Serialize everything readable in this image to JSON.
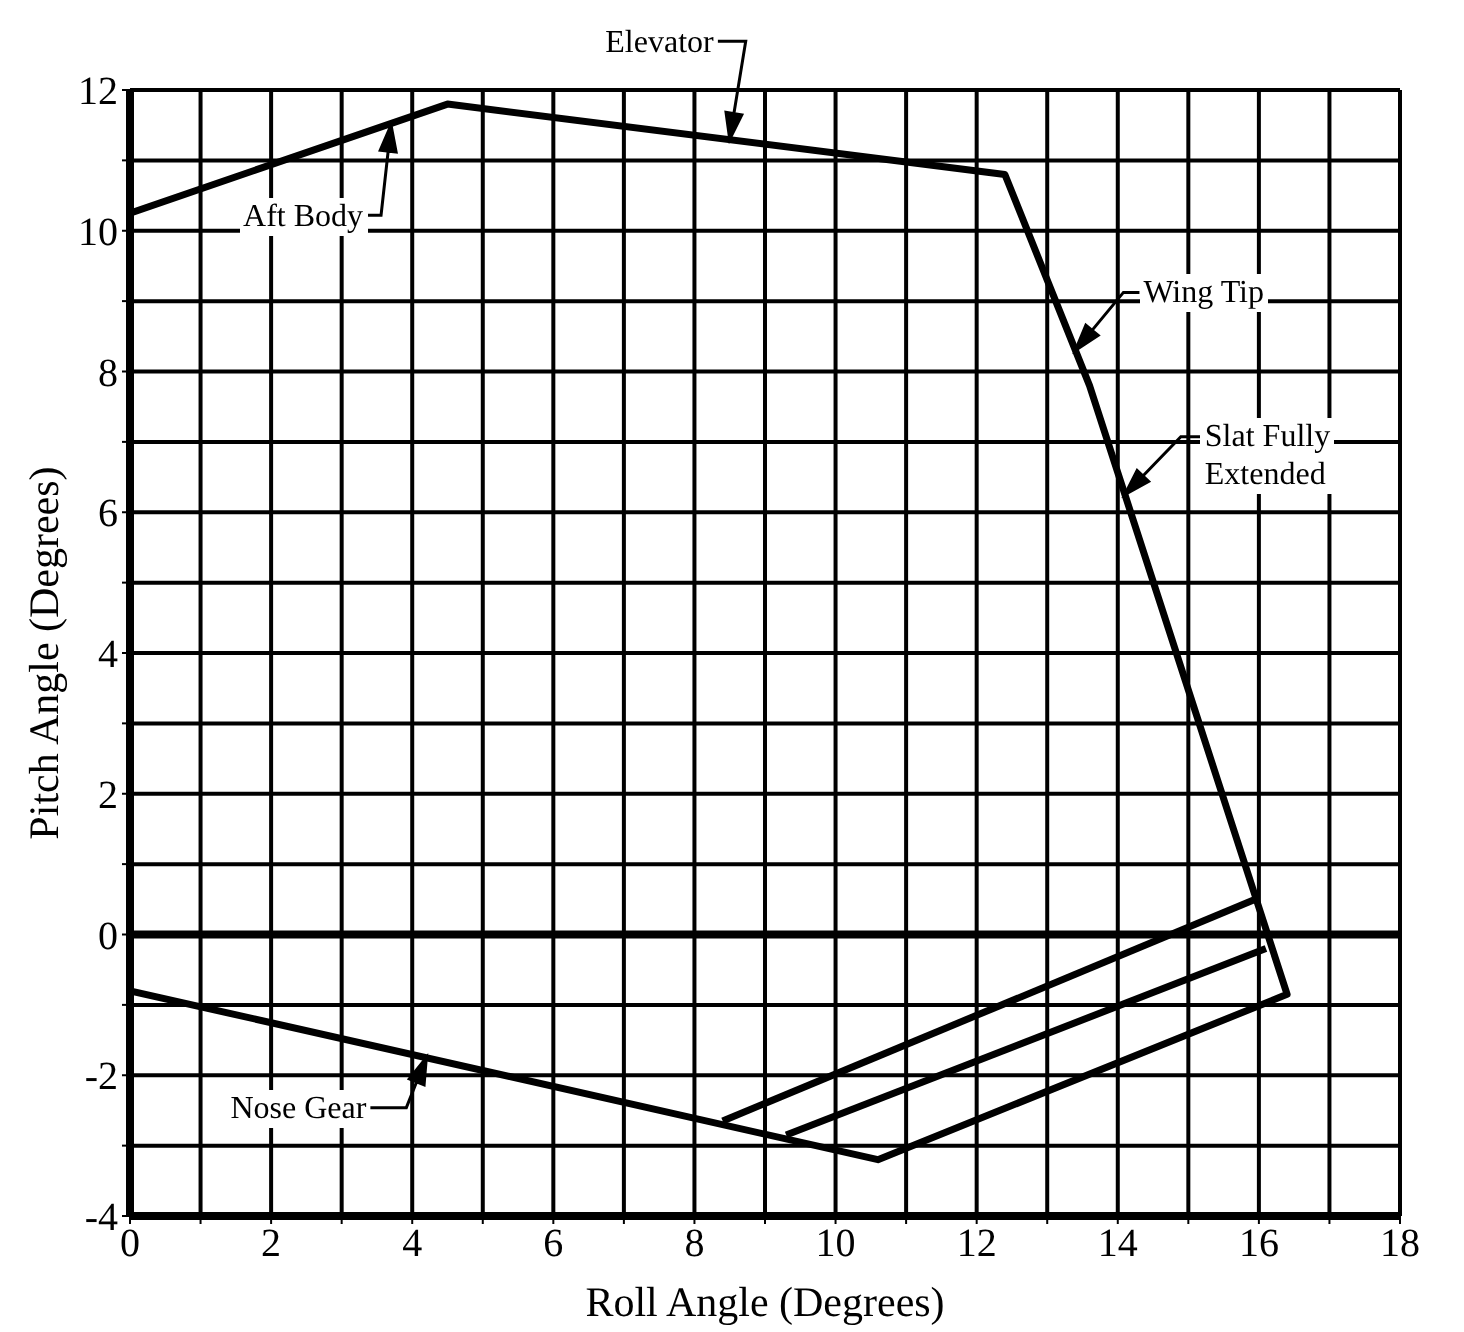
{
  "chart_data": {
    "type": "line",
    "xlabel": "Roll Angle (Degrees)",
    "ylabel": "Pitch Angle (Degrees)",
    "xlim": [
      0,
      18
    ],
    "ylim": [
      -4,
      12
    ],
    "xticks": [
      0,
      {
        "value": 1,
        "label": null
      },
      2,
      {
        "value": 3,
        "label": null
      },
      4,
      {
        "value": 5,
        "label": null
      },
      6,
      {
        "value": 7,
        "label": null
      },
      8,
      {
        "value": 9,
        "label": null
      },
      10,
      {
        "value": 11,
        "label": null
      },
      12,
      {
        "value": 13,
        "label": null
      },
      14,
      {
        "value": 15,
        "label": null
      },
      16,
      {
        "value": 17,
        "label": null
      },
      18
    ],
    "yticks": [
      -4,
      {
        "value": -3,
        "label": null
      },
      -2,
      {
        "value": -1,
        "label": null
      },
      0,
      {
        "value": 1,
        "label": null
      },
      2,
      {
        "value": 3,
        "label": null
      },
      4,
      {
        "value": 5,
        "label": null
      },
      6,
      {
        "value": 7,
        "label": null
      },
      8,
      {
        "value": 9,
        "label": null
      },
      10,
      {
        "value": 11,
        "label": null
      },
      12
    ],
    "grid": true,
    "marker": "none",
    "line_style": "solid",
    "series": [
      {
        "color": "#000000",
        "x": [
          0,
          4.5,
          12.4,
          13.6,
          16.4,
          10.6,
          0
        ],
        "values": [
          10.25,
          11.8,
          10.8,
          7.8,
          -0.85,
          -3.2,
          -0.8
        ]
      },
      {
        "color": "#000000",
        "x": [
          8.4,
          15.95
        ],
        "values": [
          -2.65,
          0.5
        ]
      },
      {
        "color": "#000000",
        "x": [
          9.3,
          16.1
        ],
        "values": [
          -2.85,
          -0.2
        ]
      }
    ],
    "ref_lines": [
      {
        "axis": "y",
        "value": 0,
        "color": "#000000"
      }
    ],
    "annotations": [
      {
        "text": "Elevator",
        "x": 8.5,
        "y": 11.3
      },
      {
        "text": "Aft Body",
        "x": 3.7,
        "y": 11.5
      },
      {
        "text": "Wing Tip",
        "x": 13.4,
        "y": 8.3
      },
      {
        "text": "Slat Fully\nExtended",
        "x": 14.1,
        "y": 6.25
      },
      {
        "text": "Nose Gear",
        "x": 4.2,
        "y": -1.75
      }
    ]
  }
}
